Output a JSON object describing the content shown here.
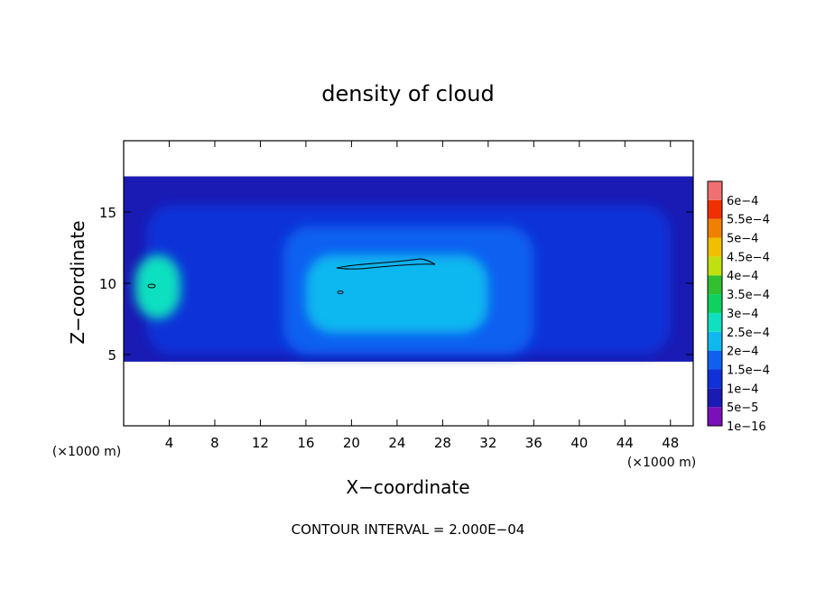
{
  "chart_data": {
    "type": "heatmap",
    "title": "density of cloud",
    "xlabel": "X−coordinate",
    "ylabel": "Z−coordinate",
    "x_unit_left": "(×1000 m)",
    "x_unit_right": "(×1000 m)",
    "footer": "CONTOUR INTERVAL = 2.000E−04",
    "xlim": [
      0,
      50
    ],
    "ylim": [
      0,
      20
    ],
    "x_ticks": [
      4,
      8,
      12,
      16,
      20,
      24,
      28,
      32,
      36,
      40,
      44,
      48
    ],
    "x_tick_labels": [
      "4",
      "8",
      "12",
      "16",
      "20",
      "24",
      "28",
      "32",
      "36",
      "40",
      "44",
      "48"
    ],
    "y_ticks": [
      5,
      10,
      15
    ],
    "y_tick_labels": [
      "5",
      "10",
      "15"
    ],
    "colorbar": {
      "levels": [
        1e-16,
        5e-05,
        0.0001,
        0.00015,
        0.0002,
        0.00025,
        0.0003,
        0.00035,
        0.0004,
        0.00045,
        0.0005,
        0.00055,
        0.0006
      ],
      "labels": [
        "1e−16",
        "5e−5",
        "1e−4",
        "1.5e−4",
        "2e−4",
        "2.5e−4",
        "3e−4",
        "3.5e−4",
        "4e−4",
        "4.5e−4",
        "5e−4",
        "5.5e−4",
        "6e−4"
      ],
      "colors": [
        "#7a10b8",
        "#1a1ab4",
        "#1030d8",
        "#1060f0",
        "#10b8f0",
        "#10e0c0",
        "#10d060",
        "#30c030",
        "#c0e010",
        "#f0c000",
        "#f08000",
        "#f03000",
        "#f07070"
      ]
    },
    "regions": [
      {
        "level": 1,
        "x": [
          0,
          50
        ],
        "z": [
          4.5,
          17.5
        ]
      },
      {
        "level": 2,
        "x": [
          2,
          48
        ],
        "z": [
          5,
          15.5
        ]
      },
      {
        "level": 3,
        "x": [
          14,
          36
        ],
        "z": [
          5,
          14
        ]
      },
      {
        "level": 4,
        "x": [
          16,
          32
        ],
        "z": [
          6.5,
          12
        ]
      },
      {
        "level": 5,
        "x": [
          1,
          5
        ],
        "z": [
          7.5,
          12
        ]
      }
    ],
    "grid": false
  }
}
